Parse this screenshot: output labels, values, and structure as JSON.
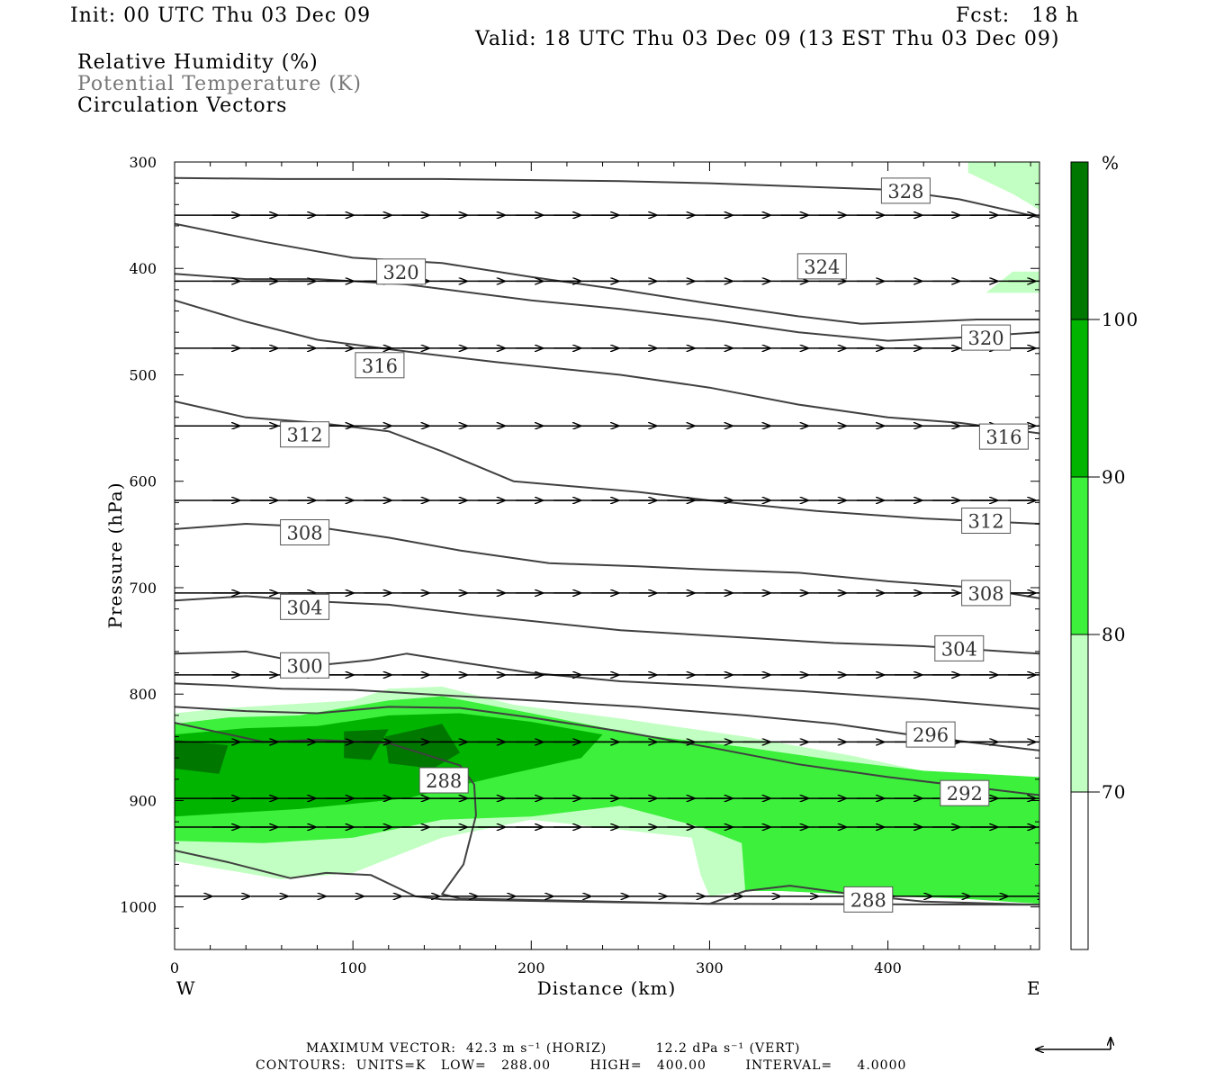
{
  "header": {
    "init": "Init: 00 UTC Thu 03 Dec 09",
    "fcst": "Fcst:   18 h",
    "valid": "Valid: 18 UTC Thu 03 Dec 09 (13 EST Thu 03 Dec 09)",
    "field1": "Relative Humidity (%)",
    "field2": "Potential Temperature (K)",
    "field3": "Circulation Vectors"
  },
  "colors": {
    "rh70": "#c2ffc2",
    "rh80": "#3cf03c",
    "rh90": "#00b400",
    "rh100": "#007800",
    "theta_line": "#404040",
    "vector": "#000000"
  },
  "chart_data": {
    "type": "contour",
    "xlabel": "Distance (km)",
    "ylabel": "Pressure (hPa)",
    "xlim": [
      0,
      485
    ],
    "ylim": [
      1040,
      300
    ],
    "x_ticks": [
      0,
      100,
      200,
      300,
      400
    ],
    "y_ticks": [
      300,
      400,
      500,
      600,
      700,
      800,
      900,
      1000
    ],
    "x_end_labels": {
      "left": "W",
      "right": "E"
    },
    "colorbar": {
      "unit": "%",
      "levels": [
        70,
        80,
        90,
        100
      ],
      "level_labels": [
        "70",
        "80",
        "90",
        "100"
      ]
    },
    "theta_labels": [
      {
        "value": "328",
        "x": 410,
        "p": 327
      },
      {
        "value": "324",
        "x": 363,
        "p": 398
      },
      {
        "value": "320",
        "x": 127,
        "p": 403
      },
      {
        "value": "320",
        "x": 455,
        "p": 465
      },
      {
        "value": "316",
        "x": 115,
        "p": 491
      },
      {
        "value": "316",
        "x": 465,
        "p": 558
      },
      {
        "value": "312",
        "x": 73,
        "p": 556
      },
      {
        "value": "312",
        "x": 455,
        "p": 637
      },
      {
        "value": "308",
        "x": 73,
        "p": 648
      },
      {
        "value": "308",
        "x": 455,
        "p": 705
      },
      {
        "value": "304",
        "x": 73,
        "p": 718
      },
      {
        "value": "304",
        "x": 440,
        "p": 757
      },
      {
        "value": "300",
        "x": 73,
        "p": 773
      },
      {
        "value": "296",
        "x": 424,
        "p": 838
      },
      {
        "value": "292",
        "x": 443,
        "p": 893
      },
      {
        "value": "288",
        "x": 151,
        "p": 881
      },
      {
        "value": "288",
        "x": 389,
        "p": 993
      }
    ],
    "theta_lines": [
      {
        "value": 328,
        "points": [
          [
            0,
            315
          ],
          [
            60,
            316
          ],
          [
            150,
            316
          ],
          [
            250,
            318
          ],
          [
            300,
            320
          ],
          [
            400,
            326
          ],
          [
            440,
            335
          ],
          [
            485,
            352
          ]
        ]
      },
      {
        "value": 324,
        "points": [
          [
            0,
            358
          ],
          [
            50,
            375
          ],
          [
            100,
            390
          ],
          [
            150,
            395
          ],
          [
            200,
            408
          ],
          [
            250,
            420
          ],
          [
            300,
            433
          ],
          [
            350,
            445
          ],
          [
            385,
            452
          ],
          [
            420,
            450
          ],
          [
            450,
            448
          ],
          [
            485,
            448
          ]
        ]
      },
      {
        "value": 320,
        "points": [
          [
            0,
            405
          ],
          [
            40,
            410
          ],
          [
            80,
            410
          ],
          [
            130,
            415
          ],
          [
            200,
            430
          ],
          [
            250,
            438
          ],
          [
            300,
            448
          ],
          [
            350,
            460
          ],
          [
            400,
            468
          ],
          [
            440,
            465
          ],
          [
            485,
            460
          ]
        ]
      },
      {
        "value": 316,
        "points": [
          [
            0,
            430
          ],
          [
            40,
            450
          ],
          [
            80,
            467
          ],
          [
            130,
            478
          ],
          [
            180,
            488
          ],
          [
            250,
            500
          ],
          [
            300,
            512
          ],
          [
            350,
            528
          ],
          [
            400,
            540
          ],
          [
            440,
            545
          ],
          [
            485,
            555
          ]
        ]
      },
      {
        "value": 312,
        "points": [
          [
            0,
            525
          ],
          [
            40,
            540
          ],
          [
            80,
            545
          ],
          [
            120,
            553
          ],
          [
            150,
            572
          ],
          [
            190,
            600
          ],
          [
            260,
            610
          ],
          [
            300,
            618
          ],
          [
            360,
            628
          ],
          [
            420,
            635
          ],
          [
            485,
            640
          ]
        ]
      },
      {
        "value": 308,
        "points": [
          [
            0,
            645
          ],
          [
            40,
            640
          ],
          [
            80,
            643
          ],
          [
            120,
            653
          ],
          [
            160,
            665
          ],
          [
            210,
            677
          ],
          [
            260,
            680
          ],
          [
            300,
            683
          ],
          [
            350,
            686
          ],
          [
            400,
            694
          ],
          [
            450,
            700
          ],
          [
            485,
            710
          ]
        ]
      },
      {
        "value": 304,
        "points": [
          [
            0,
            712
          ],
          [
            40,
            708
          ],
          [
            80,
            713
          ],
          [
            120,
            716
          ],
          [
            170,
            726
          ],
          [
            250,
            740
          ],
          [
            320,
            747
          ],
          [
            370,
            752
          ],
          [
            420,
            755
          ],
          [
            485,
            762
          ]
        ]
      },
      {
        "value": 300,
        "points": [
          [
            0,
            762
          ],
          [
            40,
            760
          ],
          [
            80,
            773
          ],
          [
            110,
            768
          ],
          [
            130,
            762
          ],
          [
            160,
            770
          ],
          [
            200,
            780
          ],
          [
            250,
            788
          ],
          [
            300,
            792
          ],
          [
            350,
            797
          ],
          [
            420,
            805
          ],
          [
            485,
            814
          ]
        ]
      },
      {
        "value": 296,
        "points": [
          [
            0,
            790
          ],
          [
            30,
            792
          ],
          [
            60,
            795
          ],
          [
            100,
            796
          ],
          [
            140,
            800
          ],
          [
            200,
            806
          ],
          [
            260,
            812
          ],
          [
            320,
            820
          ],
          [
            370,
            828
          ],
          [
            420,
            840
          ],
          [
            485,
            853
          ]
        ]
      },
      {
        "value": 292,
        "points": [
          [
            0,
            812
          ],
          [
            40,
            816
          ],
          [
            80,
            818
          ],
          [
            120,
            812
          ],
          [
            160,
            813
          ],
          [
            200,
            822
          ],
          [
            250,
            835
          ],
          [
            300,
            850
          ],
          [
            350,
            866
          ],
          [
            400,
            878
          ],
          [
            450,
            888
          ],
          [
            485,
            895
          ]
        ]
      },
      {
        "value": 288,
        "points": [
          [
            0,
            827
          ],
          [
            50,
            845
          ],
          [
            80,
            843
          ],
          [
            120,
            846
          ],
          [
            160,
            867
          ],
          [
            168,
            885
          ],
          [
            169,
            914
          ],
          [
            162,
            960
          ],
          [
            150,
            988
          ],
          [
            160,
            992
          ],
          [
            300,
            997
          ],
          [
            320,
            985
          ],
          [
            345,
            980
          ],
          [
            380,
            988
          ],
          [
            420,
            995
          ],
          [
            485,
            998
          ]
        ]
      },
      {
        "value": 288,
        "points": [
          [
            0,
            947
          ],
          [
            30,
            958
          ],
          [
            65,
            973
          ],
          [
            85,
            968
          ],
          [
            110,
            970
          ],
          [
            135,
            990
          ],
          [
            150,
            993
          ],
          [
            300,
            997
          ],
          [
            485,
            998
          ]
        ]
      }
    ],
    "rh_regions": [
      {
        "level": 70,
        "points": [
          [
            0,
            818
          ],
          [
            30,
            813
          ],
          [
            60,
            810
          ],
          [
            100,
            806
          ],
          [
            120,
            795
          ],
          [
            150,
            793
          ],
          [
            190,
            810
          ],
          [
            250,
            823
          ],
          [
            320,
            840
          ],
          [
            380,
            858
          ],
          [
            430,
            876
          ],
          [
            485,
            880
          ],
          [
            485,
            997
          ],
          [
            440,
            990
          ],
          [
            400,
            985
          ],
          [
            320,
            985
          ],
          [
            300,
            990
          ],
          [
            295,
            970
          ],
          [
            290,
            935
          ],
          [
            200,
            918
          ],
          [
            150,
            935
          ],
          [
            100,
            968
          ],
          [
            60,
            974
          ],
          [
            0,
            957
          ]
        ]
      },
      {
        "level": 80,
        "points": [
          [
            0,
            828
          ],
          [
            30,
            822
          ],
          [
            70,
            820
          ],
          [
            120,
            806
          ],
          [
            150,
            802
          ],
          [
            200,
            818
          ],
          [
            260,
            838
          ],
          [
            320,
            850
          ],
          [
            370,
            862
          ],
          [
            420,
            872
          ],
          [
            485,
            878
          ],
          [
            485,
            997
          ],
          [
            440,
            992
          ],
          [
            400,
            990
          ],
          [
            340,
            985
          ],
          [
            320,
            985
          ],
          [
            318,
            940
          ],
          [
            295,
            925
          ],
          [
            250,
            905
          ],
          [
            200,
            915
          ],
          [
            150,
            918
          ],
          [
            100,
            935
          ],
          [
            50,
            940
          ],
          [
            0,
            938
          ]
        ]
      },
      {
        "level": 90,
        "points": [
          [
            0,
            838
          ],
          [
            40,
            832
          ],
          [
            80,
            830
          ],
          [
            120,
            820
          ],
          [
            160,
            818
          ],
          [
            200,
            826
          ],
          [
            240,
            838
          ],
          [
            228,
            860
          ],
          [
            180,
            878
          ],
          [
            130,
            898
          ],
          [
            70,
            908
          ],
          [
            0,
            915
          ]
        ]
      },
      {
        "level": 100,
        "points": [
          [
            0,
            843
          ],
          [
            30,
            848
          ],
          [
            25,
            875
          ],
          [
            0,
            870
          ]
        ]
      },
      {
        "level": 100,
        "points": [
          [
            95,
            835
          ],
          [
            120,
            833
          ],
          [
            110,
            862
          ],
          [
            95,
            860
          ]
        ]
      },
      {
        "level": 100,
        "points": [
          [
            118,
            840
          ],
          [
            150,
            828
          ],
          [
            160,
            855
          ],
          [
            145,
            870
          ],
          [
            120,
            865
          ]
        ]
      },
      {
        "level": 70,
        "points": [
          [
            445,
            300
          ],
          [
            485,
            300
          ],
          [
            485,
            345
          ],
          [
            470,
            330
          ],
          [
            445,
            310
          ]
        ]
      },
      {
        "level": 70,
        "points": [
          [
            455,
            423
          ],
          [
            470,
            403
          ],
          [
            485,
            403
          ],
          [
            485,
            423
          ]
        ]
      }
    ],
    "vector_rows": [
      {
        "p": 350,
        "dx": 35,
        "dy": 0
      },
      {
        "p": 412,
        "dx": 35,
        "dy": 0
      },
      {
        "p": 475,
        "dx": 35,
        "dy": 0
      },
      {
        "p": 548,
        "dx": 35,
        "dy": 0
      },
      {
        "p": 618,
        "dx": 35,
        "dy": 0
      },
      {
        "p": 705,
        "dx": 35,
        "dy": 0
      },
      {
        "p": 782,
        "dx": 35,
        "dy": 0
      },
      {
        "p": 845,
        "dx": 35,
        "dy": 0
      },
      {
        "p": 898,
        "dx": 35,
        "dy": 0
      },
      {
        "p": 925,
        "dx": 35,
        "dy": 0
      },
      {
        "p": 990,
        "dx": 20,
        "dy": 0
      }
    ],
    "footer": {
      "max_vector": "MAXIMUM VECTOR:  42.3 m s⁻¹ (HORIZ)          12.2 dPa s⁻¹ (VERT)",
      "contours": "CONTOURS:  UNITS=K   LOW=   288.00        HIGH=   400.00        INTERVAL=     4.0000"
    }
  }
}
